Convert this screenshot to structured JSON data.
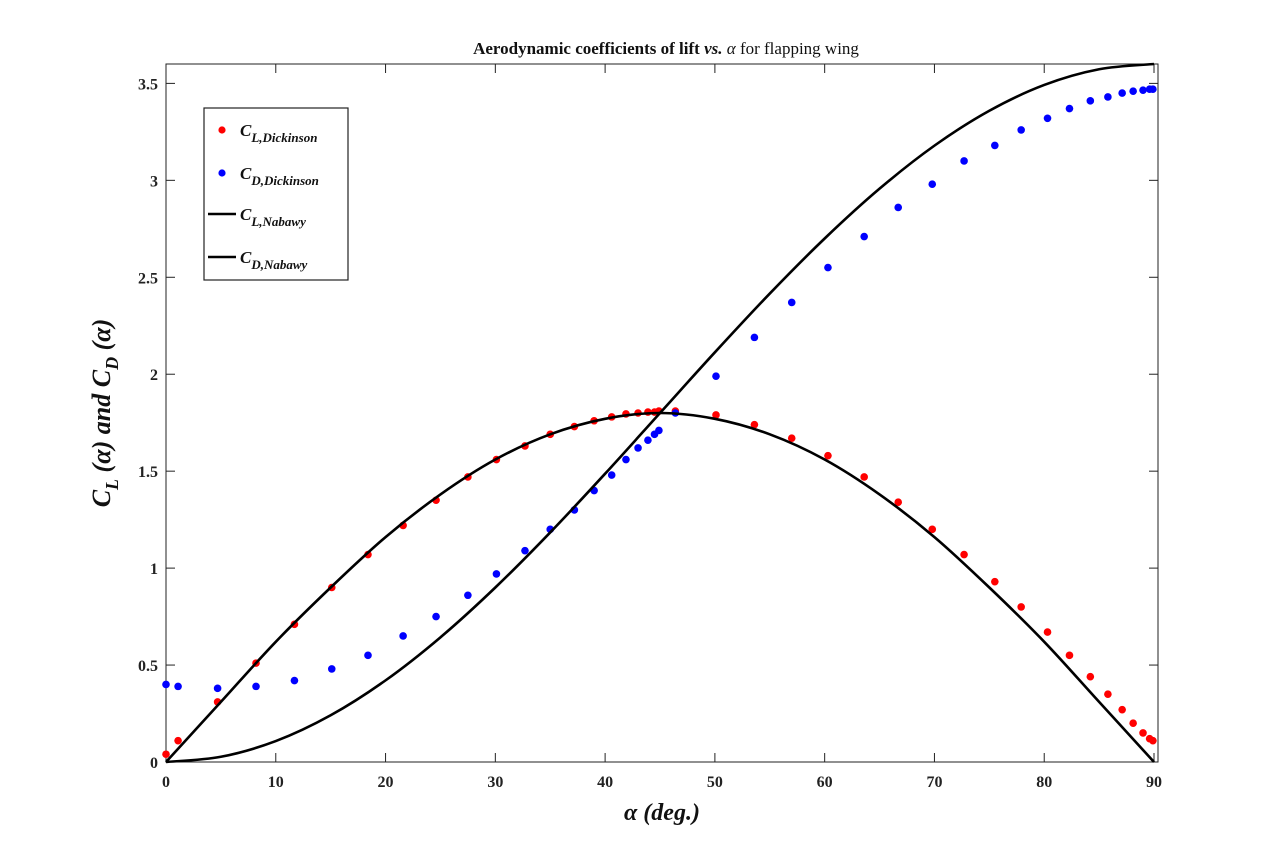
{
  "chart_data": {
    "type": "scatter",
    "title": "Aerodynamic coefficients of lift vs. α  for flapping wing",
    "title_parts": {
      "pre": "Aerodynamic coefficients of lift ",
      "vs": "vs. ",
      "alpha": "α",
      "post": "  for flapping wing"
    },
    "xlabel": "α (deg.)",
    "ylabel": "C_L (α) and C_D (α)",
    "ylabel_parts": {
      "c1": "C",
      "sub1": "L",
      "mid": " (α) and ",
      "c2": "C",
      "sub2": "D",
      "end": " (α)"
    },
    "xlim": [
      0,
      90
    ],
    "ylim": [
      0,
      3.6
    ],
    "xticks": [
      0,
      10,
      20,
      30,
      40,
      50,
      60,
      70,
      80,
      90
    ],
    "yticks": [
      0,
      0.5,
      1,
      1.5,
      2,
      2.5,
      3,
      3.5
    ],
    "ytick_labels": [
      "0",
      "0.5",
      "1",
      "1.5",
      "2",
      "2.5",
      "3",
      "3.5"
    ],
    "grid": false,
    "legend_position": "top-left",
    "series": [
      {
        "name": "C_L,Dickinson",
        "legend_main": "C",
        "legend_sub": "L,Dickinson",
        "kind": "scatter",
        "color": "#ff0000",
        "x": [
          0,
          1.1,
          4.7,
          8.2,
          11.7,
          15.1,
          18.4,
          21.6,
          24.6,
          27.5,
          30.1,
          32.7,
          35,
          37.2,
          39,
          40.6,
          41.9,
          43,
          43.9,
          44.5,
          44.9,
          46.4,
          50.1,
          53.6,
          57,
          60.3,
          63.6,
          66.7,
          69.8,
          72.7,
          75.5,
          77.9,
          80.3,
          82.3,
          84.2,
          85.8,
          87.1,
          88.1,
          89,
          89.6,
          89.9
        ],
        "y": [
          0.04,
          0.11,
          0.31,
          0.51,
          0.71,
          0.9,
          1.07,
          1.22,
          1.35,
          1.47,
          1.56,
          1.63,
          1.69,
          1.73,
          1.76,
          1.78,
          1.795,
          1.8,
          1.805,
          1.805,
          1.81,
          1.81,
          1.79,
          1.74,
          1.67,
          1.58,
          1.47,
          1.34,
          1.2,
          1.07,
          0.93,
          0.8,
          0.67,
          0.55,
          0.44,
          0.35,
          0.27,
          0.2,
          0.15,
          0.12,
          0.11
        ]
      },
      {
        "name": "C_D,Dickinson",
        "legend_main": "C",
        "legend_sub": "D,Dickinson",
        "kind": "scatter",
        "color": "#0000ff",
        "x": [
          0,
          1.1,
          4.7,
          8.2,
          11.7,
          15.1,
          18.4,
          21.6,
          24.6,
          27.5,
          30.1,
          32.7,
          35,
          37.2,
          39,
          40.6,
          41.9,
          43,
          43.9,
          44.5,
          44.9,
          46.4,
          50.1,
          53.6,
          57,
          60.3,
          63.6,
          66.7,
          69.8,
          72.7,
          75.5,
          77.9,
          80.3,
          82.3,
          84.2,
          85.8,
          87.1,
          88.1,
          89,
          89.6,
          89.9
        ],
        "y": [
          0.4,
          0.39,
          0.38,
          0.39,
          0.42,
          0.48,
          0.55,
          0.65,
          0.75,
          0.86,
          0.97,
          1.09,
          1.2,
          1.3,
          1.4,
          1.48,
          1.56,
          1.62,
          1.66,
          1.69,
          1.71,
          1.8,
          1.99,
          2.19,
          2.37,
          2.55,
          2.71,
          2.86,
          2.98,
          3.1,
          3.18,
          3.26,
          3.32,
          3.37,
          3.41,
          3.43,
          3.45,
          3.46,
          3.465,
          3.47,
          3.47
        ]
      },
      {
        "name": "C_L,Nabawy",
        "legend_main": "C",
        "legend_sub": "L,Nabawy",
        "kind": "line",
        "color": "#000000",
        "x": [
          0,
          5,
          10,
          15,
          20,
          25,
          30,
          35,
          40,
          45,
          50,
          55,
          60,
          65,
          70,
          75,
          80,
          85,
          90
        ],
        "y": [
          0,
          0.31,
          0.62,
          0.9,
          1.16,
          1.38,
          1.56,
          1.69,
          1.77,
          1.8,
          1.77,
          1.69,
          1.56,
          1.38,
          1.16,
          0.9,
          0.62,
          0.31,
          0
        ]
      },
      {
        "name": "C_D,Nabawy",
        "legend_main": "C",
        "legend_sub": "D,Nabawy",
        "kind": "line",
        "color": "#000000",
        "x": [
          0,
          5,
          10,
          15,
          20,
          25,
          30,
          35,
          40,
          45,
          50,
          55,
          60,
          65,
          70,
          75,
          80,
          85,
          90
        ],
        "y": [
          0,
          0.027,
          0.108,
          0.241,
          0.421,
          0.643,
          0.9,
          1.184,
          1.487,
          1.8,
          2.113,
          2.416,
          2.7,
          2.957,
          3.179,
          3.359,
          3.492,
          3.573,
          3.6
        ]
      }
    ]
  }
}
